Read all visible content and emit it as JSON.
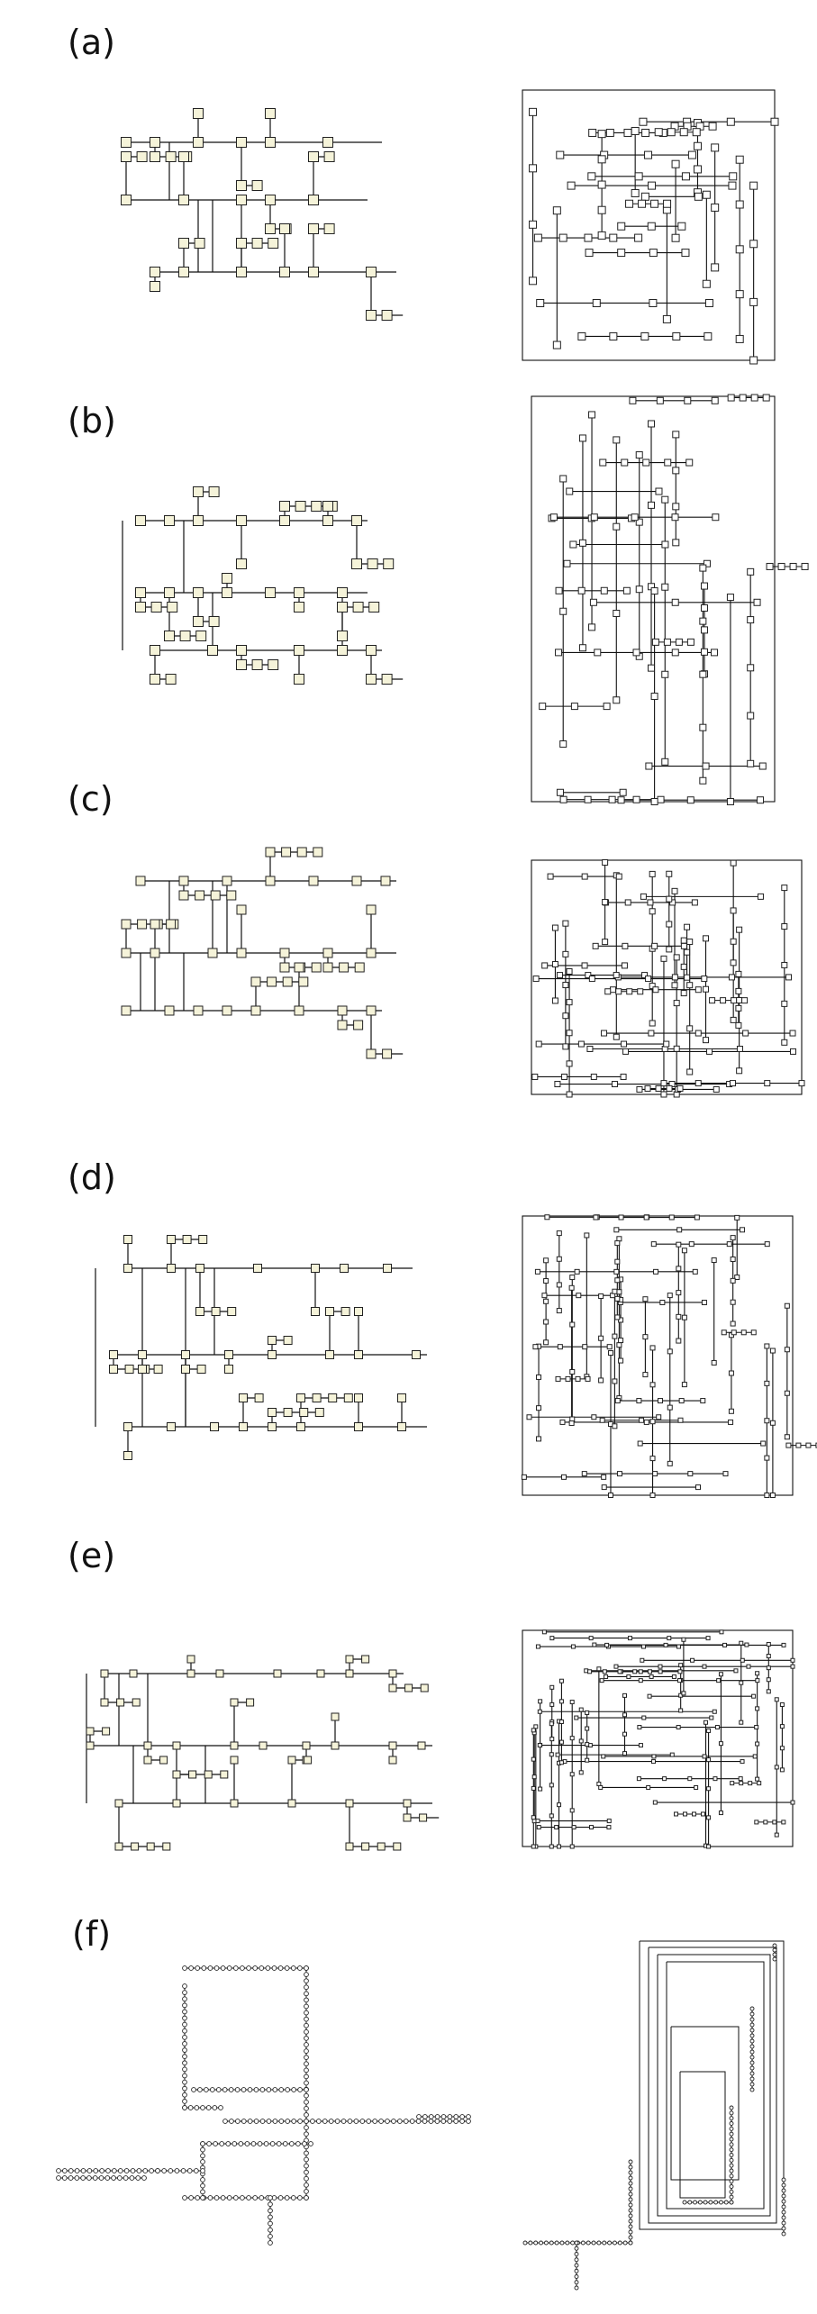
{
  "panels": [
    {
      "id": "a",
      "label": "(a)"
    },
    {
      "id": "b",
      "label": "(b)"
    },
    {
      "id": "c",
      "label": "(c)"
    },
    {
      "id": "d",
      "label": "(d)"
    },
    {
      "id": "e",
      "label": "(e)"
    },
    {
      "id": "f",
      "label": "(f)"
    }
  ],
  "colors": {
    "node_fill": "#f5f3d9",
    "node_fill_right": "#ffffff",
    "edge": "#111111",
    "node_stroke": "#222222"
  }
}
